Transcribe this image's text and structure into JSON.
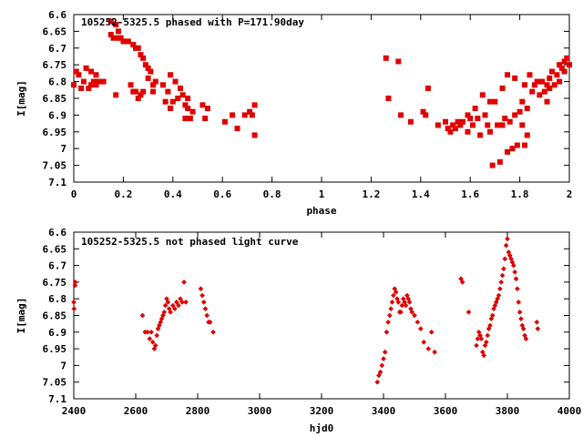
{
  "chart_data": [
    {
      "type": "scatter",
      "title": "105252-5325.5 phased with P=171.90day",
      "xlabel": "phase",
      "ylabel": "I[mag]",
      "xlim": [
        0,
        2
      ],
      "ylim": [
        6.6,
        7.1
      ],
      "y_inverted": true,
      "x_ticks": [
        "0",
        "0.2",
        "0.4",
        "0.6",
        "0.8",
        "1",
        "1.2",
        "1.4",
        "1.6",
        "1.8",
        "2"
      ],
      "y_ticks": [
        "6.6",
        "6.65",
        "6.7",
        "6.75",
        "6.8",
        "6.85",
        "6.9",
        "6.95",
        "7",
        "7.05",
        "7.1"
      ],
      "grid": false,
      "legend": "none",
      "marker_color": "#e00000",
      "points": [
        [
          0.0,
          6.81
        ],
        [
          0.01,
          6.77
        ],
        [
          0.02,
          6.78
        ],
        [
          0.03,
          6.82
        ],
        [
          0.04,
          6.8
        ],
        [
          0.05,
          6.76
        ],
        [
          0.06,
          6.82
        ],
        [
          0.07,
          6.77
        ],
        [
          0.07,
          6.81
        ],
        [
          0.08,
          6.8
        ],
        [
          0.09,
          6.78
        ],
        [
          0.09,
          6.81
        ],
        [
          0.1,
          6.8
        ],
        [
          0.12,
          6.8
        ],
        [
          0.15,
          6.62
        ],
        [
          0.15,
          6.66
        ],
        [
          0.16,
          6.67
        ],
        [
          0.17,
          6.63
        ],
        [
          0.17,
          6.84
        ],
        [
          0.18,
          6.65
        ],
        [
          0.18,
          6.67
        ],
        [
          0.19,
          6.67
        ],
        [
          0.2,
          6.68
        ],
        [
          0.21,
          6.68
        ],
        [
          0.22,
          6.68
        ],
        [
          0.23,
          6.81
        ],
        [
          0.24,
          6.69
        ],
        [
          0.24,
          6.83
        ],
        [
          0.25,
          6.7
        ],
        [
          0.25,
          6.83
        ],
        [
          0.26,
          6.7
        ],
        [
          0.26,
          6.85
        ],
        [
          0.27,
          6.72
        ],
        [
          0.27,
          6.84
        ],
        [
          0.28,
          6.73
        ],
        [
          0.28,
          6.83
        ],
        [
          0.29,
          6.75
        ],
        [
          0.3,
          6.76
        ],
        [
          0.3,
          6.79
        ],
        [
          0.31,
          6.77
        ],
        [
          0.32,
          6.81
        ],
        [
          0.32,
          6.83
        ],
        [
          0.33,
          6.8
        ],
        [
          0.36,
          6.81
        ],
        [
          0.37,
          6.86
        ],
        [
          0.38,
          6.83
        ],
        [
          0.39,
          6.78
        ],
        [
          0.39,
          6.88
        ],
        [
          0.4,
          6.86
        ],
        [
          0.41,
          6.8
        ],
        [
          0.42,
          6.85
        ],
        [
          0.43,
          6.82
        ],
        [
          0.44,
          6.84
        ],
        [
          0.45,
          6.87
        ],
        [
          0.45,
          6.91
        ],
        [
          0.46,
          6.85
        ],
        [
          0.46,
          6.88
        ],
        [
          0.47,
          6.91
        ],
        [
          0.48,
          6.89
        ],
        [
          0.52,
          6.87
        ],
        [
          0.53,
          6.91
        ],
        [
          0.54,
          6.88
        ],
        [
          0.61,
          6.92
        ],
        [
          0.64,
          6.9
        ],
        [
          0.66,
          6.94
        ],
        [
          0.69,
          6.9
        ],
        [
          0.71,
          6.89
        ],
        [
          0.72,
          6.9
        ],
        [
          0.73,
          6.87
        ],
        [
          0.73,
          6.96
        ],
        [
          1.26,
          6.73
        ],
        [
          1.27,
          6.85
        ],
        [
          1.31,
          6.74
        ],
        [
          1.32,
          6.9
        ],
        [
          1.36,
          6.92
        ],
        [
          1.41,
          6.89
        ],
        [
          1.42,
          6.9
        ],
        [
          1.43,
          6.82
        ],
        [
          1.47,
          6.93
        ],
        [
          1.5,
          6.92
        ],
        [
          1.51,
          6.94
        ],
        [
          1.52,
          6.95
        ],
        [
          1.53,
          6.93
        ],
        [
          1.54,
          6.94
        ],
        [
          1.55,
          6.92
        ],
        [
          1.56,
          6.93
        ],
        [
          1.57,
          6.92
        ],
        [
          1.59,
          6.9
        ],
        [
          1.59,
          6.95
        ],
        [
          1.6,
          6.91
        ],
        [
          1.61,
          6.93
        ],
        [
          1.62,
          6.88
        ],
        [
          1.63,
          6.91
        ],
        [
          1.64,
          6.96
        ],
        [
          1.65,
          6.84
        ],
        [
          1.66,
          6.9
        ],
        [
          1.67,
          6.93
        ],
        [
          1.68,
          6.86
        ],
        [
          1.68,
          6.95
        ],
        [
          1.69,
          7.05
        ],
        [
          1.7,
          6.86
        ],
        [
          1.71,
          6.93
        ],
        [
          1.72,
          7.04
        ],
        [
          1.73,
          6.82
        ],
        [
          1.73,
          6.93
        ],
        [
          1.74,
          6.91
        ],
        [
          1.75,
          7.01
        ],
        [
          1.75,
          6.78
        ],
        [
          1.76,
          6.92
        ],
        [
          1.77,
          7.0
        ],
        [
          1.78,
          6.79
        ],
        [
          1.78,
          6.9
        ],
        [
          1.79,
          6.99
        ],
        [
          1.8,
          6.89
        ],
        [
          1.81,
          6.86
        ],
        [
          1.81,
          6.93
        ],
        [
          1.82,
          6.81
        ],
        [
          1.82,
          6.99
        ],
        [
          1.83,
          6.88
        ],
        [
          1.83,
          6.96
        ],
        [
          1.84,
          6.78
        ],
        [
          1.85,
          6.83
        ],
        [
          1.86,
          6.81
        ],
        [
          1.87,
          6.8
        ],
        [
          1.88,
          6.84
        ],
        [
          1.89,
          6.8
        ],
        [
          1.9,
          6.83
        ],
        [
          1.91,
          6.86
        ],
        [
          1.91,
          6.81
        ],
        [
          1.92,
          6.82
        ],
        [
          1.92,
          6.79
        ],
        [
          1.93,
          6.77
        ],
        [
          1.94,
          6.81
        ],
        [
          1.95,
          6.78
        ],
        [
          1.96,
          6.75
        ],
        [
          1.96,
          6.8
        ],
        [
          1.97,
          6.76
        ],
        [
          1.98,
          6.74
        ],
        [
          1.98,
          6.77
        ],
        [
          1.99,
          6.73
        ],
        [
          2.0,
          6.75
        ]
      ]
    },
    {
      "type": "scatter",
      "title": "105252-5325.5 not phased light curve",
      "xlabel": "hjd0",
      "ylabel": "I[mag]",
      "xlim": [
        2400,
        4000
      ],
      "ylim": [
        6.6,
        7.1
      ],
      "y_inverted": true,
      "x_ticks": [
        "2400",
        "2600",
        "2800",
        "3000",
        "3200",
        "3400",
        "3600",
        "3800",
        "4000"
      ],
      "y_ticks": [
        "6.6",
        "6.65",
        "6.7",
        "6.75",
        "6.8",
        "6.85",
        "6.9",
        "6.95",
        "7",
        "7.05",
        "7.1"
      ],
      "grid": false,
      "legend": "none",
      "marker_color": "#e00000",
      "points": [
        [
          2400,
          6.81
        ],
        [
          2401,
          6.83
        ],
        [
          2404,
          6.76
        ],
        [
          2405,
          6.75
        ],
        [
          2622,
          6.85
        ],
        [
          2630,
          6.9
        ],
        [
          2638,
          6.9
        ],
        [
          2645,
          6.92
        ],
        [
          2650,
          6.9
        ],
        [
          2655,
          6.93
        ],
        [
          2660,
          6.95
        ],
        [
          2664,
          6.94
        ],
        [
          2668,
          6.91
        ],
        [
          2672,
          6.89
        ],
        [
          2676,
          6.88
        ],
        [
          2680,
          6.87
        ],
        [
          2684,
          6.86
        ],
        [
          2688,
          6.85
        ],
        [
          2692,
          6.84
        ],
        [
          2696,
          6.82
        ],
        [
          2700,
          6.8
        ],
        [
          2704,
          6.81
        ],
        [
          2708,
          6.83
        ],
        [
          2712,
          6.84
        ],
        [
          2720,
          6.82
        ],
        [
          2726,
          6.83
        ],
        [
          2732,
          6.81
        ],
        [
          2738,
          6.82
        ],
        [
          2744,
          6.8
        ],
        [
          2750,
          6.81
        ],
        [
          2756,
          6.75
        ],
        [
          2762,
          6.81
        ],
        [
          2810,
          6.77
        ],
        [
          2815,
          6.79
        ],
        [
          2820,
          6.81
        ],
        [
          2825,
          6.83
        ],
        [
          2830,
          6.85
        ],
        [
          2835,
          6.87
        ],
        [
          2840,
          6.87
        ],
        [
          2850,
          6.9
        ],
        [
          3380,
          7.05
        ],
        [
          3385,
          7.03
        ],
        [
          3390,
          7.02
        ],
        [
          3395,
          7.0
        ],
        [
          3400,
          6.98
        ],
        [
          3405,
          6.96
        ],
        [
          3410,
          6.9
        ],
        [
          3415,
          6.87
        ],
        [
          3420,
          6.85
        ],
        [
          3424,
          6.83
        ],
        [
          3428,
          6.81
        ],
        [
          3432,
          6.79
        ],
        [
          3436,
          6.77
        ],
        [
          3440,
          6.78
        ],
        [
          3444,
          6.8
        ],
        [
          3448,
          6.81
        ],
        [
          3452,
          6.84
        ],
        [
          3456,
          6.84
        ],
        [
          3460,
          6.82
        ],
        [
          3464,
          6.8
        ],
        [
          3468,
          6.81
        ],
        [
          3472,
          6.82
        ],
        [
          3476,
          6.79
        ],
        [
          3480,
          6.8
        ],
        [
          3484,
          6.81
        ],
        [
          3488,
          6.83
        ],
        [
          3492,
          6.84
        ],
        [
          3500,
          6.85
        ],
        [
          3510,
          6.87
        ],
        [
          3520,
          6.89
        ],
        [
          3530,
          6.93
        ],
        [
          3545,
          6.95
        ],
        [
          3555,
          6.9
        ],
        [
          3565,
          6.96
        ],
        [
          3650,
          6.74
        ],
        [
          3655,
          6.75
        ],
        [
          3675,
          6.84
        ],
        [
          3700,
          6.94
        ],
        [
          3704,
          6.92
        ],
        [
          3708,
          6.9
        ],
        [
          3712,
          6.91
        ],
        [
          3716,
          6.92
        ],
        [
          3720,
          6.96
        ],
        [
          3724,
          6.97
        ],
        [
          3728,
          6.94
        ],
        [
          3732,
          6.93
        ],
        [
          3736,
          6.91
        ],
        [
          3740,
          6.89
        ],
        [
          3744,
          6.88
        ],
        [
          3748,
          6.86
        ],
        [
          3752,
          6.85
        ],
        [
          3756,
          6.83
        ],
        [
          3760,
          6.82
        ],
        [
          3764,
          6.81
        ],
        [
          3768,
          6.8
        ],
        [
          3772,
          6.79
        ],
        [
          3776,
          6.77
        ],
        [
          3780,
          6.75
        ],
        [
          3784,
          6.73
        ],
        [
          3788,
          6.71
        ],
        [
          3792,
          6.68
        ],
        [
          3796,
          6.64
        ],
        [
          3800,
          6.62
        ],
        [
          3804,
          6.66
        ],
        [
          3808,
          6.67
        ],
        [
          3812,
          6.68
        ],
        [
          3816,
          6.69
        ],
        [
          3820,
          6.7
        ],
        [
          3824,
          6.72
        ],
        [
          3828,
          6.74
        ],
        [
          3832,
          6.77
        ],
        [
          3836,
          6.81
        ],
        [
          3840,
          6.84
        ],
        [
          3844,
          6.86
        ],
        [
          3848,
          6.88
        ],
        [
          3852,
          6.89
        ],
        [
          3856,
          6.91
        ],
        [
          3860,
          6.92
        ],
        [
          3895,
          6.87
        ],
        [
          3898,
          6.89
        ]
      ]
    }
  ]
}
